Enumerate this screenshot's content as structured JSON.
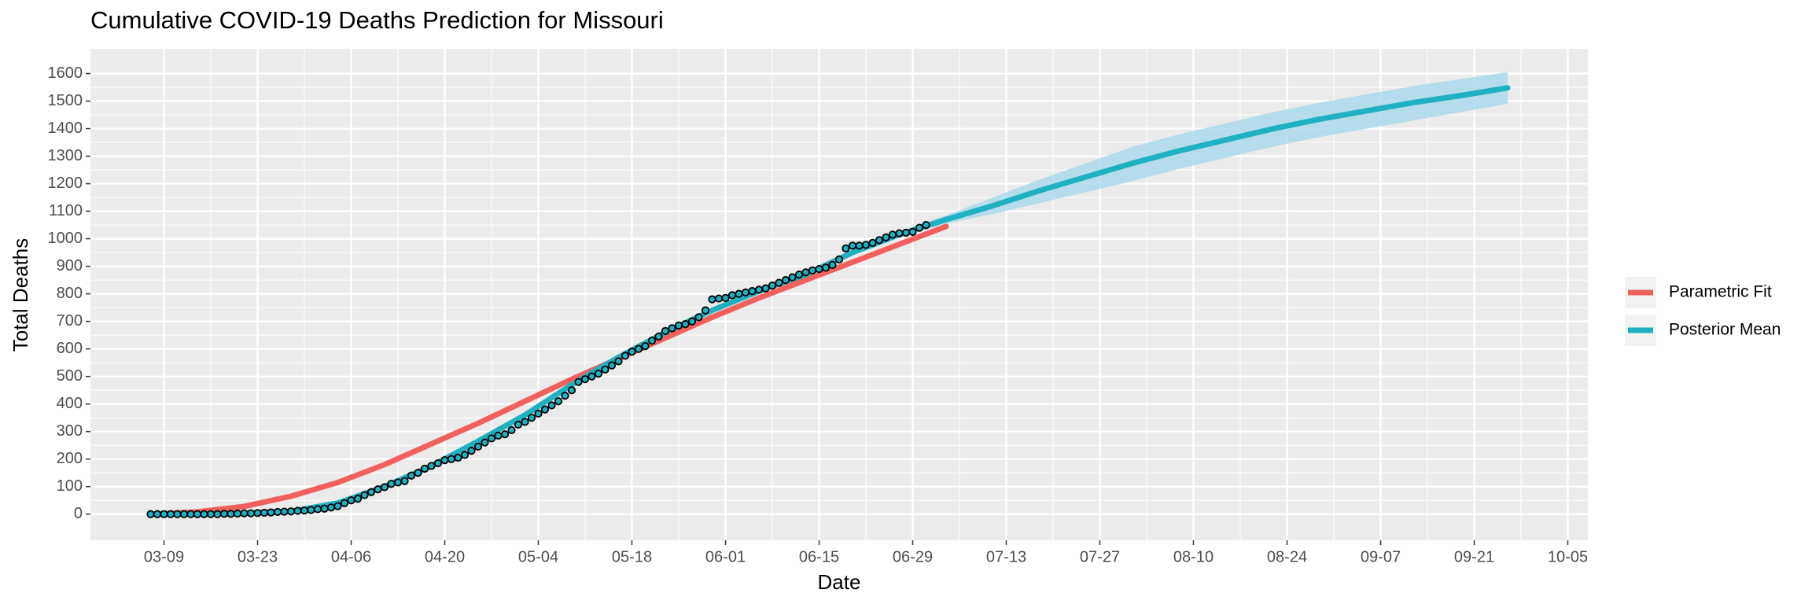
{
  "chart_data": {
    "type": "line",
    "title": "Cumulative COVID-19 Deaths Prediction for Missouri",
    "x_label": "Date",
    "y_label": "Total Deaths",
    "xlim": [
      "02-26",
      "10-08"
    ],
    "xticks": [
      "03-09",
      "03-23",
      "04-06",
      "04-20",
      "05-04",
      "05-18",
      "06-01",
      "06-15",
      "06-29",
      "07-13",
      "07-27",
      "08-10",
      "08-24",
      "09-07",
      "09-21",
      "10-05"
    ],
    "ylim": [
      -95,
      1690
    ],
    "yticks": [
      0,
      100,
      200,
      300,
      400,
      500,
      600,
      700,
      800,
      900,
      1000,
      1100,
      1200,
      1300,
      1400,
      1500,
      1600
    ],
    "grid": true,
    "legend": "right",
    "series": [
      {
        "name": "Parametric Fit",
        "color": "#f0615d",
        "x": [
          "03-07",
          "03-14",
          "03-21",
          "03-28",
          "04-04",
          "04-11",
          "04-18",
          "04-25",
          "05-02",
          "05-09",
          "05-16",
          "05-23",
          "05-30",
          "06-06",
          "06-13",
          "06-20",
          "06-27",
          "07-04"
        ],
        "values": [
          0,
          8,
          28,
          65,
          115,
          180,
          255,
          330,
          410,
          490,
          565,
          640,
          715,
          785,
          850,
          915,
          980,
          1045
        ]
      },
      {
        "name": "Posterior Mean",
        "color": "#1fb0c1",
        "band_color": "#acd9ea",
        "x": [
          "03-07",
          "03-14",
          "03-21",
          "03-28",
          "04-04",
          "04-11",
          "04-18",
          "04-25",
          "05-02",
          "05-09",
          "05-16",
          "05-23",
          "05-30",
          "06-06",
          "06-13",
          "06-20",
          "06-27",
          "07-04",
          "07-11",
          "07-18",
          "07-25",
          "08-01",
          "08-08",
          "08-15",
          "08-22",
          "08-29",
          "09-05",
          "09-12",
          "09-19",
          "09-26"
        ],
        "values": [
          0,
          0,
          3,
          10,
          40,
          100,
          175,
          265,
          360,
          470,
          570,
          660,
          740,
          810,
          870,
          950,
          1015,
          1070,
          1120,
          1175,
          1225,
          1275,
          1320,
          1360,
          1400,
          1435,
          1465,
          1495,
          1520,
          1548
        ],
        "lower": [
          0,
          0,
          0,
          2,
          30,
          90,
          165,
          255,
          350,
          460,
          560,
          650,
          730,
          800,
          860,
          940,
          1005,
          1055,
          1090,
          1130,
          1170,
          1210,
          1255,
          1295,
          1335,
          1370,
          1400,
          1430,
          1460,
          1490
        ],
        "upper": [
          5,
          8,
          10,
          20,
          50,
          110,
          185,
          275,
          370,
          480,
          580,
          670,
          750,
          820,
          880,
          960,
          1025,
          1085,
          1150,
          1215,
          1275,
          1335,
          1380,
          1420,
          1460,
          1495,
          1525,
          1555,
          1580,
          1605
        ]
      }
    ],
    "points": {
      "color": "#1fb0c1",
      "stroke": "#000000",
      "x": [
        "03-07",
        "03-08",
        "03-09",
        "03-10",
        "03-11",
        "03-12",
        "03-13",
        "03-14",
        "03-15",
        "03-16",
        "03-17",
        "03-18",
        "03-19",
        "03-20",
        "03-21",
        "03-22",
        "03-23",
        "03-24",
        "03-25",
        "03-26",
        "03-27",
        "03-28",
        "03-29",
        "03-30",
        "03-31",
        "04-01",
        "04-02",
        "04-03",
        "04-04",
        "04-05",
        "04-06",
        "04-07",
        "04-08",
        "04-09",
        "04-10",
        "04-11",
        "04-12",
        "04-13",
        "04-14",
        "04-15",
        "04-16",
        "04-17",
        "04-18",
        "04-19",
        "04-20",
        "04-21",
        "04-22",
        "04-23",
        "04-24",
        "04-25",
        "04-26",
        "04-27",
        "04-28",
        "04-29",
        "04-30",
        "05-01",
        "05-02",
        "05-03",
        "05-04",
        "05-05",
        "05-06",
        "05-07",
        "05-08",
        "05-09",
        "05-10",
        "05-11",
        "05-12",
        "05-13",
        "05-14",
        "05-15",
        "05-16",
        "05-17",
        "05-18",
        "05-19",
        "05-20",
        "05-21",
        "05-22",
        "05-23",
        "05-24",
        "05-25",
        "05-26",
        "05-27",
        "05-28",
        "05-29",
        "05-30",
        "05-31",
        "06-01",
        "06-02",
        "06-03",
        "06-04",
        "06-05",
        "06-06",
        "06-07",
        "06-08",
        "06-09",
        "06-10",
        "06-11",
        "06-12",
        "06-13",
        "06-14",
        "06-15",
        "06-16",
        "06-17",
        "06-18",
        "06-19",
        "06-20",
        "06-21",
        "06-22",
        "06-23",
        "06-24",
        "06-25",
        "06-26",
        "06-27",
        "06-28",
        "06-29",
        "06-30",
        "07-01"
      ],
      "values": [
        0,
        0,
        0,
        0,
        0,
        0,
        0,
        0,
        0,
        0,
        0,
        1,
        1,
        2,
        3,
        3,
        4,
        5,
        6,
        8,
        9,
        10,
        12,
        13,
        15,
        18,
        20,
        24,
        29,
        40,
        50,
        56,
        69,
        80,
        90,
        98,
        110,
        115,
        120,
        140,
        150,
        165,
        175,
        185,
        196,
        200,
        205,
        215,
        230,
        245,
        260,
        275,
        285,
        290,
        305,
        325,
        335,
        350,
        365,
        380,
        395,
        410,
        430,
        450,
        480,
        490,
        500,
        510,
        525,
        540,
        555,
        575,
        590,
        600,
        610,
        630,
        645,
        665,
        675,
        685,
        690,
        700,
        715,
        740,
        780,
        783,
        785,
        795,
        800,
        805,
        810,
        815,
        820,
        830,
        840,
        850,
        860,
        870,
        878,
        885,
        890,
        895,
        905,
        925,
        965,
        975,
        975,
        978,
        985,
        995,
        1005,
        1015,
        1020,
        1022,
        1025,
        1040,
        1050
      ]
    }
  }
}
